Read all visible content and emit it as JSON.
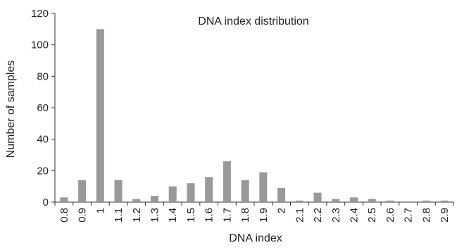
{
  "chart_data": {
    "type": "bar",
    "title": "DNA index distribution",
    "xlabel": "DNA index",
    "ylabel": "Number of samples",
    "ylim": [
      0,
      120
    ],
    "yticks": [
      0,
      20,
      40,
      60,
      80,
      100,
      120
    ],
    "grid": false,
    "legend": "none",
    "categories": [
      "0.8",
      "0.9",
      "1",
      "1.1",
      "1.2",
      "1.3",
      "1.4",
      "1.5",
      "1.6",
      "1.7",
      "1.8",
      "1.9",
      "2",
      "2.1",
      "2.2",
      "2.3",
      "2.4",
      "2.5",
      "2.6",
      "2.7",
      "2.8",
      "2.9"
    ],
    "values": [
      3,
      14,
      110,
      14,
      2,
      4,
      10,
      12,
      16,
      26,
      14,
      19,
      9,
      1,
      6,
      2,
      3,
      2,
      1,
      0,
      1,
      1
    ],
    "bar_color": "#999999",
    "axis_color": "#333333"
  }
}
